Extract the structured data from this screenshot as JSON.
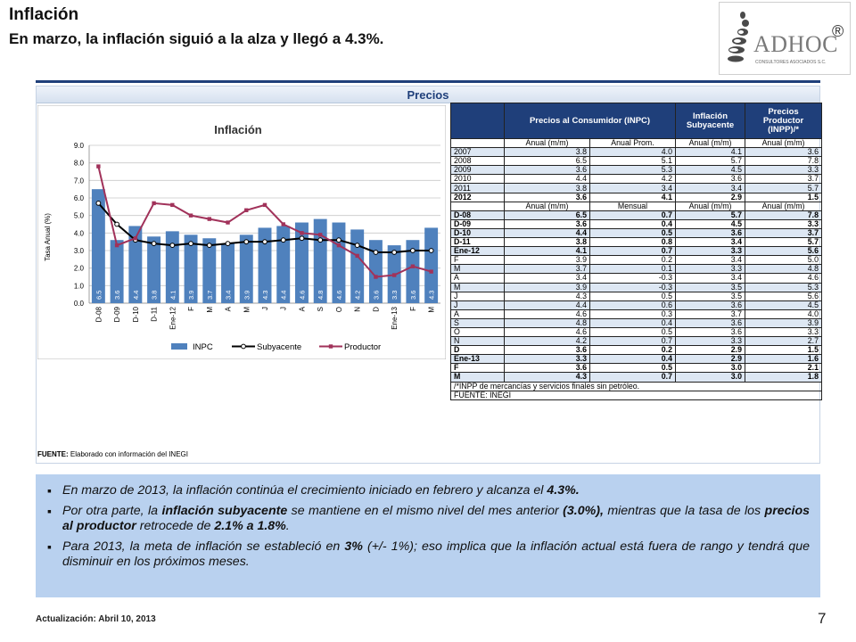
{
  "header": {
    "title": "Inflación",
    "subtitle": "En marzo, la inflación siguió a la alza y llegó a 4.3%."
  },
  "logo": {
    "text": "ADHOC",
    "registered": "®",
    "tagline": "CONSULTORES ASOCIADOS S.C."
  },
  "panel": {
    "title": "Precios",
    "source_label": "FUENTE:",
    "source_text": "Elaborado con información del INEGI"
  },
  "chart_data": {
    "type": "bar",
    "title": "Inflación",
    "ylabel": "Tasa Anual (%)",
    "ylim": [
      0,
      9
    ],
    "yticks": [
      "0.0",
      "1.0",
      "2.0",
      "3.0",
      "4.0",
      "5.0",
      "6.0",
      "7.0",
      "8.0",
      "9.0"
    ],
    "grid": true,
    "legend_position": "bottom",
    "categories": [
      "D-08",
      "D-09",
      "D-10",
      "D-11",
      "Ene-12",
      "F",
      "M",
      "A",
      "M",
      "J",
      "J",
      "A",
      "S",
      "O",
      "N",
      "D",
      "Ene-13",
      "F",
      "M"
    ],
    "series": [
      {
        "name": "INPC",
        "kind": "bar",
        "color": "#4f81bd",
        "values": [
          6.5,
          3.6,
          4.4,
          3.8,
          4.1,
          3.9,
          3.7,
          3.4,
          3.9,
          4.3,
          4.4,
          4.6,
          4.8,
          4.6,
          4.2,
          3.6,
          3.3,
          3.6,
          4.3
        ],
        "labels": [
          "6.5",
          "3.6",
          "4.4",
          "3.8",
          "4.1",
          "3.9",
          "3.7",
          "3.4",
          "3.9",
          "4.3",
          "4.4",
          "4.6",
          "4.8",
          "4.6",
          "4.2",
          "3.6",
          "3.3",
          "3.6",
          "4.3"
        ]
      },
      {
        "name": "Subyacente",
        "kind": "line",
        "color": "#000000",
        "values": [
          5.7,
          4.5,
          3.6,
          3.4,
          3.3,
          3.4,
          3.3,
          3.4,
          3.5,
          3.5,
          3.6,
          3.7,
          3.6,
          3.6,
          3.3,
          2.9,
          2.9,
          3.0,
          3.0
        ]
      },
      {
        "name": "Productor",
        "kind": "line",
        "color": "#a1325a",
        "values": [
          7.8,
          3.3,
          3.7,
          5.7,
          5.6,
          5.0,
          4.8,
          4.6,
          5.3,
          5.6,
          4.5,
          4.0,
          3.9,
          3.3,
          2.7,
          1.5,
          1.6,
          2.1,
          1.8
        ]
      }
    ]
  },
  "table": {
    "headers": [
      "",
      "Precios al Consumidor (INPC)",
      "Inflación Subyacente",
      "Precios Productor (INPP)/*"
    ],
    "subheader_annual": [
      "",
      "Anual (m/m)",
      "Anual Prom.",
      "Anual (m/m)",
      "Anual (m/m)"
    ],
    "annual_rows": [
      {
        "label": "2007",
        "v": [
          "3.8",
          "4.0",
          "4.1",
          "3.6"
        ],
        "bold": false,
        "shade": true
      },
      {
        "label": "2008",
        "v": [
          "6.5",
          "5.1",
          "5.7",
          "7.8"
        ],
        "bold": false,
        "shade": false
      },
      {
        "label": "2009",
        "v": [
          "3.6",
          "5.3",
          "4.5",
          "3.3"
        ],
        "bold": false,
        "shade": true
      },
      {
        "label": "2010",
        "v": [
          "4.4",
          "4.2",
          "3.6",
          "3.7"
        ],
        "bold": false,
        "shade": false
      },
      {
        "label": "2011",
        "v": [
          "3.8",
          "3.4",
          "3.4",
          "5.7"
        ],
        "bold": false,
        "shade": true
      },
      {
        "label": "2012",
        "v": [
          "3.6",
          "4.1",
          "2.9",
          "1.5"
        ],
        "bold": true,
        "shade": false
      }
    ],
    "subheader_monthly": [
      "",
      "Anual (m/m)",
      "Mensual",
      "Anual (m/m)",
      "Anual (m/m)"
    ],
    "monthly_rows": [
      {
        "label": "D-08",
        "v": [
          "6.5",
          "0.7",
          "5.7",
          "7.8"
        ],
        "bold": true,
        "shade": true
      },
      {
        "label": "D-09",
        "v": [
          "3.6",
          "0.4",
          "4.5",
          "3.3"
        ],
        "bold": true,
        "shade": false
      },
      {
        "label": "D-10",
        "v": [
          "4.4",
          "0.5",
          "3.6",
          "3.7"
        ],
        "bold": true,
        "shade": true
      },
      {
        "label": "D-11",
        "v": [
          "3.8",
          "0.8",
          "3.4",
          "5.7"
        ],
        "bold": true,
        "shade": false
      },
      {
        "label": "Ene-12",
        "v": [
          "4.1",
          "0.7",
          "3.3",
          "5.6"
        ],
        "bold": true,
        "shade": true
      },
      {
        "label": "F",
        "v": [
          "3.9",
          "0.2",
          "3.4",
          "5.0"
        ],
        "bold": false,
        "shade": false
      },
      {
        "label": "M",
        "v": [
          "3.7",
          "0.1",
          "3.3",
          "4.8"
        ],
        "bold": false,
        "shade": true
      },
      {
        "label": "A",
        "v": [
          "3.4",
          "-0.3",
          "3.4",
          "4.6"
        ],
        "bold": false,
        "shade": false
      },
      {
        "label": "M",
        "v": [
          "3.9",
          "-0.3",
          "3.5",
          "5.3"
        ],
        "bold": false,
        "shade": true
      },
      {
        "label": "J",
        "v": [
          "4.3",
          "0.5",
          "3.5",
          "5.6"
        ],
        "bold": false,
        "shade": false
      },
      {
        "label": "J",
        "v": [
          "4.4",
          "0.6",
          "3.6",
          "4.5"
        ],
        "bold": false,
        "shade": true
      },
      {
        "label": "A",
        "v": [
          "4.6",
          "0.3",
          "3.7",
          "4.0"
        ],
        "bold": false,
        "shade": false
      },
      {
        "label": "S",
        "v": [
          "4.8",
          "0.4",
          "3.6",
          "3.9"
        ],
        "bold": false,
        "shade": true
      },
      {
        "label": "O",
        "v": [
          "4.6",
          "0.5",
          "3.6",
          "3.3"
        ],
        "bold": false,
        "shade": false
      },
      {
        "label": "N",
        "v": [
          "4.2",
          "0.7",
          "3.3",
          "2.7"
        ],
        "bold": false,
        "shade": true
      },
      {
        "label": "D",
        "v": [
          "3.6",
          "0.2",
          "2.9",
          "1.5"
        ],
        "bold": true,
        "shade": false
      },
      {
        "label": "Ene-13",
        "v": [
          "3.3",
          "0.4",
          "2.9",
          "1.6"
        ],
        "bold": true,
        "shade": true
      },
      {
        "label": "F",
        "v": [
          "3.6",
          "0.5",
          "3.0",
          "2.1"
        ],
        "bold": true,
        "shade": false
      },
      {
        "label": "M",
        "v": [
          "4.3",
          "0.7",
          "3.0",
          "1.8"
        ],
        "bold": true,
        "shade": true
      }
    ],
    "note": "/*INPP de mercancías y servicios finales sin petróleo.",
    "source": "FUENTE: INEGI"
  },
  "bullets": {
    "b1_pre": "En marzo de 2013, la inflación continúa el crecimiento iniciado en febrero y alcanza el",
    "b1_bold": "4.3%.",
    "b2_a": "Por otra parte, la",
    "b2_b": "inflación subyacente",
    "b2_c": "se mantiene en el mismo nivel del mes anterior",
    "b2_d": "(3.0%),",
    "b2_e": "mientras que la tasa de los",
    "b2_f": "precios al productor",
    "b2_g": "retrocede de",
    "b2_h": "2.1% a 1.8%",
    "b2_i": ".",
    "b3_a": "Para 2013, la meta de inflación se estableció en",
    "b3_b": "3%",
    "b3_c": "(+/- 1%); eso implica que la inflación actual está fuera de rango y tendrá que disminuir en los próximos meses."
  },
  "footer": {
    "update": "Actualización: Abril 10, 2013",
    "page": "7"
  }
}
